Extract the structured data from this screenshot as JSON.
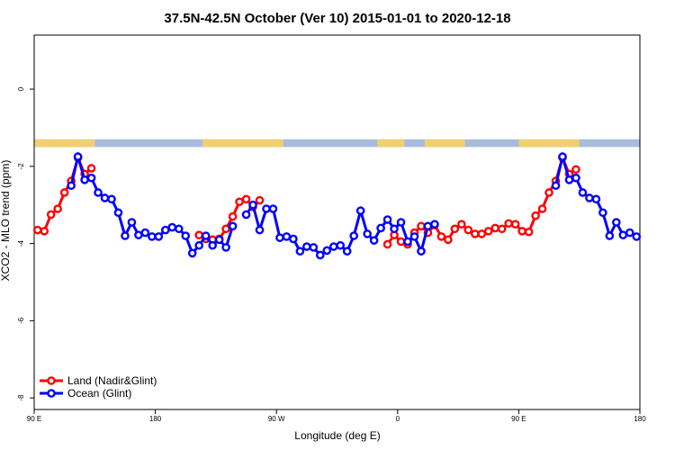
{
  "chart_data": {
    "type": "line",
    "title": "37.5N-42.5N October (Ver 10)   2015-01-01 to 2020-12-18",
    "xlabel": "Longitude (deg E)",
    "ylabel": "XCO2 - MLO trend (ppm)",
    "xlim": [
      90,
      540
    ],
    "ylim": [
      -8.3,
      1.4
    ],
    "x_ticks": [
      {
        "value": 90,
        "label": "90 E"
      },
      {
        "value": 180,
        "label": "180"
      },
      {
        "value": 270,
        "label": "90 W"
      },
      {
        "value": 360,
        "label": "0"
      },
      {
        "value": 450,
        "label": "90 E"
      },
      {
        "value": 540,
        "label": "180"
      }
    ],
    "y_ticks": [
      0,
      -2,
      -4,
      -6,
      -8
    ],
    "map_strip": {
      "y_top": -1.3,
      "y_bottom": -1.5,
      "land_color": "#f0d070",
      "ocean_color": "#a8bcdc"
    },
    "legend": {
      "position": "bottom-left"
    },
    "series": [
      {
        "name": "Land (Nadir&Glint)",
        "color": "#ff0000",
        "points": [
          [
            92.5,
            -3.65
          ],
          [
            97.5,
            -3.68
          ],
          [
            102.5,
            -3.25
          ],
          [
            107.5,
            -3.1
          ],
          [
            112.5,
            -2.68
          ],
          [
            117.5,
            -2.38
          ],
          [
            122.5,
            -1.78
          ],
          [
            127.5,
            -2.2
          ],
          [
            132.5,
            -2.05
          ],
          [
            212.5,
            -3.78
          ],
          [
            217.5,
            -3.88
          ],
          [
            222.5,
            -3.9
          ],
          [
            227.5,
            -3.88
          ],
          [
            232.5,
            -3.62
          ],
          [
            237.5,
            -3.3
          ],
          [
            242.5,
            -2.92
          ],
          [
            247.5,
            -2.85
          ],
          [
            252.5,
            -3.05
          ],
          [
            257.5,
            -2.88
          ],
          [
            352.5,
            -4.02
          ],
          [
            357.5,
            -3.78
          ],
          [
            362.5,
            -3.95
          ],
          [
            367.5,
            -4.02
          ],
          [
            372.5,
            -3.72
          ],
          [
            377.5,
            -3.55
          ],
          [
            382.5,
            -3.72
          ],
          [
            387.5,
            -3.52
          ],
          [
            392.5,
            -3.82
          ],
          [
            397.5,
            -3.9
          ],
          [
            402.5,
            -3.62
          ],
          [
            407.5,
            -3.5
          ],
          [
            412.5,
            -3.65
          ],
          [
            417.5,
            -3.75
          ],
          [
            422.5,
            -3.75
          ],
          [
            427.5,
            -3.68
          ],
          [
            432.5,
            -3.6
          ],
          [
            437.5,
            -3.62
          ],
          [
            442.5,
            -3.48
          ],
          [
            447.5,
            -3.5
          ],
          [
            452.5,
            -3.68
          ],
          [
            457.5,
            -3.7
          ],
          [
            462.5,
            -3.28
          ],
          [
            467.5,
            -3.1
          ],
          [
            472.5,
            -2.68
          ],
          [
            477.5,
            -2.38
          ],
          [
            482.5,
            -1.78
          ],
          [
            487.5,
            -2.2
          ],
          [
            492.5,
            -2.08
          ]
        ]
      },
      {
        "name": "Ocean (Glint)",
        "color": "#0000ff",
        "points": [
          [
            117.5,
            -2.5
          ],
          [
            122.5,
            -1.75
          ],
          [
            127.5,
            -2.35
          ],
          [
            132.5,
            -2.3
          ],
          [
            137.5,
            -2.68
          ],
          [
            142.5,
            -2.82
          ],
          [
            147.5,
            -2.85
          ],
          [
            152.5,
            -3.2
          ],
          [
            157.5,
            -3.8
          ],
          [
            162.5,
            -3.45
          ],
          [
            167.5,
            -3.78
          ],
          [
            172.5,
            -3.72
          ],
          [
            177.5,
            -3.82
          ],
          [
            182.5,
            -3.82
          ],
          [
            187.5,
            -3.65
          ],
          [
            192.5,
            -3.58
          ],
          [
            197.5,
            -3.62
          ],
          [
            202.5,
            -3.8
          ],
          [
            207.5,
            -4.25
          ],
          [
            212.5,
            -4.05
          ],
          [
            217.5,
            -3.8
          ],
          [
            222.5,
            -4.05
          ],
          [
            227.5,
            -3.9
          ],
          [
            232.5,
            -4.1
          ],
          [
            237.5,
            -3.55
          ],
          [
            247.5,
            -3.25
          ],
          [
            252.5,
            -3.0
          ],
          [
            257.5,
            -3.65
          ],
          [
            262.5,
            -3.1
          ],
          [
            267.5,
            -3.1
          ],
          [
            272.5,
            -3.85
          ],
          [
            277.5,
            -3.82
          ],
          [
            282.5,
            -3.88
          ],
          [
            287.5,
            -4.2
          ],
          [
            292.5,
            -4.08
          ],
          [
            297.5,
            -4.1
          ],
          [
            302.5,
            -4.3
          ],
          [
            307.5,
            -4.18
          ],
          [
            312.5,
            -4.08
          ],
          [
            317.5,
            -4.05
          ],
          [
            322.5,
            -4.2
          ],
          [
            327.5,
            -3.8
          ],
          [
            332.5,
            -3.15
          ],
          [
            337.5,
            -3.75
          ],
          [
            342.5,
            -3.92
          ],
          [
            347.5,
            -3.6
          ],
          [
            352.5,
            -3.38
          ],
          [
            357.5,
            -3.62
          ],
          [
            362.5,
            -3.45
          ],
          [
            367.5,
            -3.95
          ],
          [
            372.5,
            -3.82
          ],
          [
            377.5,
            -4.2
          ],
          [
            382.5,
            -3.55
          ],
          [
            387.5,
            -3.5
          ],
          [
            477.5,
            -2.5
          ],
          [
            482.5,
            -1.75
          ],
          [
            487.5,
            -2.35
          ],
          [
            492.5,
            -2.3
          ],
          [
            497.5,
            -2.68
          ],
          [
            502.5,
            -2.82
          ],
          [
            507.5,
            -2.85
          ],
          [
            512.5,
            -3.2
          ],
          [
            517.5,
            -3.8
          ],
          [
            522.5,
            -3.45
          ],
          [
            527.5,
            -3.78
          ],
          [
            532.5,
            -3.72
          ],
          [
            537.5,
            -3.82
          ]
        ]
      }
    ]
  }
}
